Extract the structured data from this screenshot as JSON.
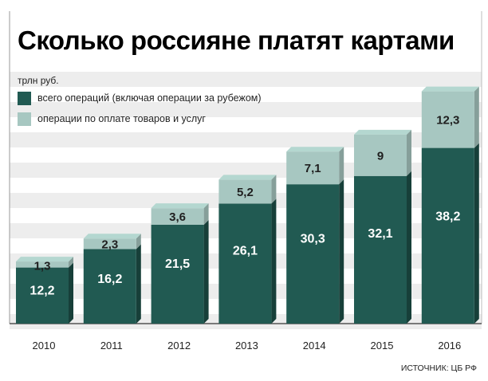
{
  "title": "Сколько россияне платят картами",
  "unit_label": "трлн руб.",
  "legend": [
    {
      "label": "всего операций (включая операции за рубежом)",
      "color": "#215a52"
    },
    {
      "label": "операции по оплате товаров и услуг",
      "color": "#a7c7c1"
    }
  ],
  "source": "ИСТОЧНИК: ЦБ РФ",
  "colors": {
    "dark": "#215a52",
    "light": "#a7c7c1",
    "background_stripes": "#dedede"
  },
  "chart_data": {
    "type": "bar",
    "categories": [
      "2010",
      "2011",
      "2012",
      "2013",
      "2014",
      "2015",
      "2016"
    ],
    "series": [
      {
        "name": "всего операций (включая операции за рубежом)",
        "values": [
          12.2,
          16.2,
          21.5,
          26.1,
          30.3,
          32.1,
          38.2
        ],
        "labels": [
          "12,2",
          "16,2",
          "21,5",
          "26,1",
          "30,3",
          "32,1",
          "38,2"
        ]
      },
      {
        "name": "операции по оплате товаров и услуг",
        "values": [
          1.3,
          2.3,
          3.6,
          5.2,
          7.1,
          9,
          12.3
        ],
        "labels": [
          "1,3",
          "2,3",
          "3,6",
          "5,2",
          "7,1",
          "9",
          "12,3"
        ]
      }
    ],
    "stacking": "light value shown stacked on top of dark bar",
    "ylim": [
      0,
      52
    ],
    "grid": true,
    "legend_position": "top-left"
  }
}
